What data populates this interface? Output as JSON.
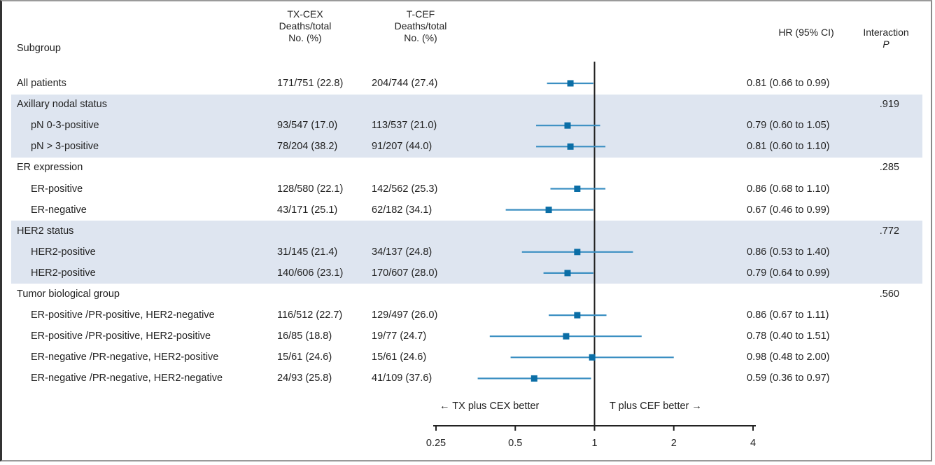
{
  "header": {
    "subgroup": "Subgroup",
    "arm1": [
      "TX-CEX",
      "Deaths/total",
      "No. (%)"
    ],
    "arm2": [
      "T-CEF",
      "Deaths/total",
      "No. (%)"
    ],
    "hr": "HR (95% CI)",
    "interaction": [
      "Interaction",
      "P"
    ]
  },
  "chart_data": {
    "type": "forest",
    "title": "",
    "xlabel": "",
    "x_scale": "log2",
    "xlim": [
      0.25,
      4
    ],
    "x_ticks": [
      0.25,
      0.5,
      1,
      2,
      4
    ],
    "x_tick_labels": [
      "0.25",
      "0.5",
      "1",
      "2",
      "4"
    ],
    "reference_line": 1,
    "direction_labels": {
      "left": "← TX plus CEX better",
      "right": "T plus CEF better →"
    },
    "rows": [
      {
        "label": "All patients",
        "indent": false,
        "header": false,
        "shaded": false,
        "arm1": "171/751 (22.8)",
        "arm2": "204/744 (27.4)",
        "hr": 0.81,
        "lo": 0.66,
        "hi": 0.99,
        "hr_text": "0.81 (0.66 to 0.99)",
        "p": ""
      },
      {
        "label": "Axillary nodal status",
        "indent": false,
        "header": true,
        "shaded": true,
        "arm1": "",
        "arm2": "",
        "hr": null,
        "lo": null,
        "hi": null,
        "hr_text": "",
        "p": ".919"
      },
      {
        "label": "pN 0-3-positive",
        "indent": true,
        "header": false,
        "shaded": true,
        "arm1": "93/547 (17.0)",
        "arm2": "113/537 (21.0)",
        "hr": 0.79,
        "lo": 0.6,
        "hi": 1.05,
        "hr_text": "0.79 (0.60 to 1.05)",
        "p": ""
      },
      {
        "label": "pN > 3-positive",
        "indent": true,
        "header": false,
        "shaded": true,
        "arm1": "78/204 (38.2)",
        "arm2": "91/207 (44.0)",
        "hr": 0.81,
        "lo": 0.6,
        "hi": 1.1,
        "hr_text": "0.81 (0.60 to 1.10)",
        "p": ""
      },
      {
        "label": "ER expression",
        "indent": false,
        "header": true,
        "shaded": false,
        "arm1": "",
        "arm2": "",
        "hr": null,
        "lo": null,
        "hi": null,
        "hr_text": "",
        "p": ".285"
      },
      {
        "label": "ER-positive",
        "indent": true,
        "header": false,
        "shaded": false,
        "arm1": "128/580 (22.1)",
        "arm2": "142/562 (25.3)",
        "hr": 0.86,
        "lo": 0.68,
        "hi": 1.1,
        "hr_text": "0.86 (0.68 to 1.10)",
        "p": ""
      },
      {
        "label": "ER-negative",
        "indent": true,
        "header": false,
        "shaded": false,
        "arm1": "43/171 (25.1)",
        "arm2": "62/182 (34.1)",
        "hr": 0.67,
        "lo": 0.46,
        "hi": 0.99,
        "hr_text": "0.67 (0.46 to 0.99)",
        "p": ""
      },
      {
        "label": "HER2 status",
        "indent": false,
        "header": true,
        "shaded": true,
        "arm1": "",
        "arm2": "",
        "hr": null,
        "lo": null,
        "hi": null,
        "hr_text": "",
        "p": ".772"
      },
      {
        "label": "HER2-positive",
        "indent": true,
        "header": false,
        "shaded": true,
        "arm1": "31/145 (21.4)",
        "arm2": "34/137 (24.8)",
        "hr": 0.86,
        "lo": 0.53,
        "hi": 1.4,
        "hr_text": "0.86 (0.53 to 1.40)",
        "p": ""
      },
      {
        "label": "HER2-positive",
        "indent": true,
        "header": false,
        "shaded": true,
        "arm1": "140/606 (23.1)",
        "arm2": "170/607 (28.0)",
        "hr": 0.79,
        "lo": 0.64,
        "hi": 0.99,
        "hr_text": "0.79 (0.64 to 0.99)",
        "p": ""
      },
      {
        "label": "Tumor biological group",
        "indent": false,
        "header": true,
        "shaded": false,
        "arm1": "",
        "arm2": "",
        "hr": null,
        "lo": null,
        "hi": null,
        "hr_text": "",
        "p": ".560"
      },
      {
        "label": "ER-positive /PR-positive, HER2-negative",
        "indent": true,
        "header": false,
        "shaded": false,
        "arm1": "116/512 (22.7)",
        "arm2": "129/497 (26.0)",
        "hr": 0.86,
        "lo": 0.67,
        "hi": 1.11,
        "hr_text": "0.86 (0.67 to 1.11)",
        "p": ""
      },
      {
        "label": "ER-positive /PR-positive, HER2-positive",
        "indent": true,
        "header": false,
        "shaded": false,
        "arm1": "16/85 (18.8)",
        "arm2": "19/77 (24.7)",
        "hr": 0.78,
        "lo": 0.4,
        "hi": 1.51,
        "hr_text": "0.78 (0.40 to 1.51)",
        "p": ""
      },
      {
        "label": "ER-negative /PR-negative, HER2-positive",
        "indent": true,
        "header": false,
        "shaded": false,
        "arm1": "15/61 (24.6)",
        "arm2": "15/61 (24.6)",
        "hr": 0.98,
        "lo": 0.48,
        "hi": 2.0,
        "hr_text": "0.98 (0.48 to 2.00)",
        "p": ""
      },
      {
        "label": "ER-negative /PR-negative, HER2-negative",
        "indent": true,
        "header": false,
        "shaded": false,
        "arm1": "24/93 (25.8)",
        "arm2": "41/109 (37.6)",
        "hr": 0.59,
        "lo": 0.36,
        "hi": 0.97,
        "hr_text": "0.59 (0.36 to 0.97)",
        "p": ""
      }
    ],
    "colors": {
      "marker": "#0b6ea6",
      "ci_line": "#3b8fc2",
      "reference": "#222222",
      "band": "#dee5f0"
    }
  }
}
